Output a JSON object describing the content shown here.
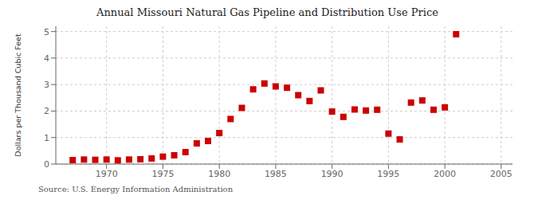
{
  "chart_data": {
    "type": "scatter",
    "title": "Annual Missouri Natural Gas Pipeline and Distribution Use Price",
    "ylabel": "Dollars per Thousand Cubic Feet",
    "source": "Source: U.S. Energy Information Administration",
    "x": [
      1967,
      1968,
      1969,
      1970,
      1971,
      1972,
      1973,
      1974,
      1975,
      1976,
      1977,
      1978,
      1979,
      1980,
      1981,
      1982,
      1983,
      1984,
      1985,
      1986,
      1987,
      1988,
      1989,
      1990,
      1991,
      1992,
      1993,
      1994,
      1995,
      1996,
      1997,
      1998,
      1999,
      2000,
      2001
    ],
    "values": [
      0.15,
      0.17,
      0.16,
      0.17,
      0.14,
      0.17,
      0.18,
      0.21,
      0.28,
      0.33,
      0.45,
      0.78,
      0.87,
      1.17,
      1.7,
      2.12,
      2.82,
      3.04,
      2.93,
      2.88,
      2.6,
      2.38,
      2.78,
      1.98,
      1.78,
      2.06,
      2.02,
      2.05,
      1.15,
      0.93,
      2.32,
      2.4,
      2.05,
      2.14,
      4.9
    ],
    "color": "#cc0000",
    "marker": "square",
    "xlim": [
      1965.5,
      2006
    ],
    "ylim": [
      0,
      5.2
    ],
    "xticks": [
      1970,
      1975,
      1980,
      1985,
      1990,
      1995,
      2000,
      2005
    ],
    "yticks": [
      0,
      1,
      2,
      3,
      4,
      5
    ],
    "grid": true
  }
}
